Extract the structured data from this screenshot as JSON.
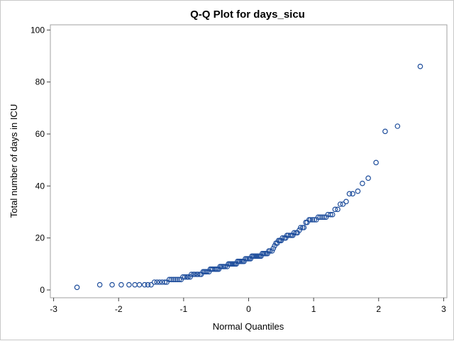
{
  "chart_data": {
    "type": "scatter",
    "title": "Q-Q Plot for days_sicu",
    "xlabel": "Normal Quantiles",
    "ylabel": "Total number of days in ICU",
    "xlim": [
      -3.05,
      3.05
    ],
    "ylim": [
      -3,
      102
    ],
    "xticks": [
      -3,
      -2,
      -1,
      0,
      1,
      2,
      3
    ],
    "yticks": [
      0,
      20,
      40,
      60,
      80,
      100
    ],
    "grid": false,
    "marker_color": "#1f4e9c",
    "points": [
      {
        "x": -2.64,
        "y": 1
      },
      {
        "x": -2.29,
        "y": 2
      },
      {
        "x": -2.1,
        "y": 2
      },
      {
        "x": -1.96,
        "y": 2
      },
      {
        "x": -1.84,
        "y": 2
      },
      {
        "x": -1.75,
        "y": 2
      },
      {
        "x": -1.68,
        "y": 2
      },
      {
        "x": -1.6,
        "y": 2
      },
      {
        "x": -1.55,
        "y": 2
      },
      {
        "x": -1.5,
        "y": 2
      },
      {
        "x": -1.45,
        "y": 3
      },
      {
        "x": -1.41,
        "y": 3
      },
      {
        "x": -1.37,
        "y": 3
      },
      {
        "x": -1.33,
        "y": 3
      },
      {
        "x": -1.29,
        "y": 3
      },
      {
        "x": -1.26,
        "y": 3
      },
      {
        "x": -1.22,
        "y": 4
      },
      {
        "x": -1.19,
        "y": 4
      },
      {
        "x": -1.16,
        "y": 4
      },
      {
        "x": -1.13,
        "y": 4
      },
      {
        "x": -1.1,
        "y": 4
      },
      {
        "x": -1.07,
        "y": 4
      },
      {
        "x": -1.04,
        "y": 4
      },
      {
        "x": -1.01,
        "y": 5
      },
      {
        "x": -0.98,
        "y": 5
      },
      {
        "x": -0.95,
        "y": 5
      },
      {
        "x": -0.93,
        "y": 5
      },
      {
        "x": -0.9,
        "y": 5
      },
      {
        "x": -0.88,
        "y": 6
      },
      {
        "x": -0.85,
        "y": 6
      },
      {
        "x": -0.83,
        "y": 6
      },
      {
        "x": -0.8,
        "y": 6
      },
      {
        "x": -0.78,
        "y": 6
      },
      {
        "x": -0.75,
        "y": 6
      },
      {
        "x": -0.73,
        "y": 6
      },
      {
        "x": -0.7,
        "y": 7
      },
      {
        "x": -0.68,
        "y": 7
      },
      {
        "x": -0.66,
        "y": 7
      },
      {
        "x": -0.64,
        "y": 7
      },
      {
        "x": -0.61,
        "y": 7
      },
      {
        "x": -0.59,
        "y": 8
      },
      {
        "x": -0.57,
        "y": 8
      },
      {
        "x": -0.55,
        "y": 8
      },
      {
        "x": -0.52,
        "y": 8
      },
      {
        "x": -0.5,
        "y": 8
      },
      {
        "x": -0.48,
        "y": 8
      },
      {
        "x": -0.46,
        "y": 8
      },
      {
        "x": -0.44,
        "y": 9
      },
      {
        "x": -0.42,
        "y": 9
      },
      {
        "x": -0.4,
        "y": 9
      },
      {
        "x": -0.38,
        "y": 9
      },
      {
        "x": -0.36,
        "y": 9
      },
      {
        "x": -0.33,
        "y": 9
      },
      {
        "x": -0.31,
        "y": 10
      },
      {
        "x": -0.29,
        "y": 10
      },
      {
        "x": -0.27,
        "y": 10
      },
      {
        "x": -0.25,
        "y": 10
      },
      {
        "x": -0.23,
        "y": 10
      },
      {
        "x": -0.21,
        "y": 10
      },
      {
        "x": -0.19,
        "y": 10
      },
      {
        "x": -0.17,
        "y": 11
      },
      {
        "x": -0.15,
        "y": 11
      },
      {
        "x": -0.13,
        "y": 11
      },
      {
        "x": -0.11,
        "y": 11
      },
      {
        "x": -0.09,
        "y": 11
      },
      {
        "x": -0.07,
        "y": 11
      },
      {
        "x": -0.05,
        "y": 12
      },
      {
        "x": -0.03,
        "y": 12
      },
      {
        "x": -0.01,
        "y": 12
      },
      {
        "x": 0.01,
        "y": 12
      },
      {
        "x": 0.03,
        "y": 12
      },
      {
        "x": 0.05,
        "y": 13
      },
      {
        "x": 0.07,
        "y": 13
      },
      {
        "x": 0.09,
        "y": 13
      },
      {
        "x": 0.11,
        "y": 13
      },
      {
        "x": 0.13,
        "y": 13
      },
      {
        "x": 0.15,
        "y": 13
      },
      {
        "x": 0.17,
        "y": 13
      },
      {
        "x": 0.19,
        "y": 13
      },
      {
        "x": 0.21,
        "y": 14
      },
      {
        "x": 0.23,
        "y": 14
      },
      {
        "x": 0.25,
        "y": 14
      },
      {
        "x": 0.27,
        "y": 14
      },
      {
        "x": 0.29,
        "y": 14
      },
      {
        "x": 0.31,
        "y": 15
      },
      {
        "x": 0.33,
        "y": 15
      },
      {
        "x": 0.36,
        "y": 15
      },
      {
        "x": 0.38,
        "y": 16
      },
      {
        "x": 0.4,
        "y": 17
      },
      {
        "x": 0.42,
        "y": 18
      },
      {
        "x": 0.44,
        "y": 18
      },
      {
        "x": 0.46,
        "y": 19
      },
      {
        "x": 0.48,
        "y": 19
      },
      {
        "x": 0.5,
        "y": 19
      },
      {
        "x": 0.52,
        "y": 20
      },
      {
        "x": 0.55,
        "y": 20
      },
      {
        "x": 0.57,
        "y": 20
      },
      {
        "x": 0.59,
        "y": 21
      },
      {
        "x": 0.61,
        "y": 21
      },
      {
        "x": 0.64,
        "y": 21
      },
      {
        "x": 0.66,
        "y": 21
      },
      {
        "x": 0.68,
        "y": 21
      },
      {
        "x": 0.7,
        "y": 22
      },
      {
        "x": 0.73,
        "y": 22
      },
      {
        "x": 0.75,
        "y": 22
      },
      {
        "x": 0.78,
        "y": 23
      },
      {
        "x": 0.8,
        "y": 24
      },
      {
        "x": 0.83,
        "y": 24
      },
      {
        "x": 0.85,
        "y": 24
      },
      {
        "x": 0.88,
        "y": 26
      },
      {
        "x": 0.9,
        "y": 26
      },
      {
        "x": 0.93,
        "y": 27
      },
      {
        "x": 0.95,
        "y": 27
      },
      {
        "x": 0.98,
        "y": 27
      },
      {
        "x": 1.01,
        "y": 27
      },
      {
        "x": 1.04,
        "y": 27
      },
      {
        "x": 1.07,
        "y": 28
      },
      {
        "x": 1.1,
        "y": 28
      },
      {
        "x": 1.13,
        "y": 28
      },
      {
        "x": 1.16,
        "y": 28
      },
      {
        "x": 1.19,
        "y": 28
      },
      {
        "x": 1.22,
        "y": 29
      },
      {
        "x": 1.26,
        "y": 29
      },
      {
        "x": 1.29,
        "y": 29
      },
      {
        "x": 1.33,
        "y": 31
      },
      {
        "x": 1.37,
        "y": 31
      },
      {
        "x": 1.41,
        "y": 33
      },
      {
        "x": 1.45,
        "y": 33
      },
      {
        "x": 1.5,
        "y": 34
      },
      {
        "x": 1.55,
        "y": 37
      },
      {
        "x": 1.6,
        "y": 37
      },
      {
        "x": 1.68,
        "y": 38
      },
      {
        "x": 1.75,
        "y": 41
      },
      {
        "x": 1.84,
        "y": 43
      },
      {
        "x": 1.96,
        "y": 49
      },
      {
        "x": 2.1,
        "y": 61
      },
      {
        "x": 2.29,
        "y": 63
      },
      {
        "x": 2.64,
        "y": 86
      }
    ]
  }
}
